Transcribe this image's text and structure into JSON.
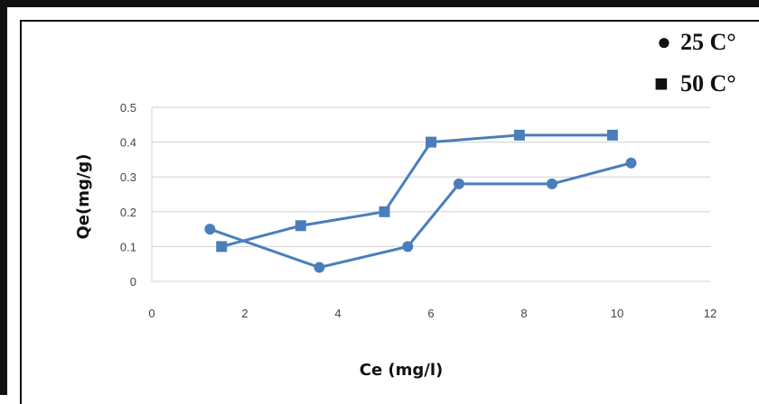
{
  "chart_data": {
    "type": "line",
    "title": "",
    "xlabel": "Ce (mg/l)",
    "ylabel": "Qe(mg/g)",
    "xlim": [
      0,
      12
    ],
    "ylim": [
      0,
      0.5
    ],
    "xticks": [
      "0",
      "2",
      "4",
      "6",
      "8",
      "10",
      "12"
    ],
    "yticks": [
      "0",
      "0.1",
      "0.2",
      "0.3",
      "0.4",
      "0.5"
    ],
    "grid": "horizontal",
    "legend_position": "top-right",
    "series": [
      {
        "name": "25 C°",
        "marker": "circle",
        "color": "#4a7ebb",
        "x": [
          1.25,
          3.6,
          5.5,
          6.6,
          8.6,
          10.3
        ],
        "y": [
          0.15,
          0.04,
          0.1,
          0.28,
          0.28,
          0.34
        ]
      },
      {
        "name": "50 C°",
        "marker": "square",
        "color": "#4a7ebb",
        "x": [
          1.5,
          3.2,
          5.0,
          6.0,
          7.9,
          9.9
        ],
        "y": [
          0.1,
          0.16,
          0.2,
          0.4,
          0.42,
          0.42
        ]
      }
    ],
    "legend": [
      {
        "symbol": "●",
        "label": "25 C°"
      },
      {
        "symbol": "■",
        "label": "50 C°"
      }
    ]
  }
}
